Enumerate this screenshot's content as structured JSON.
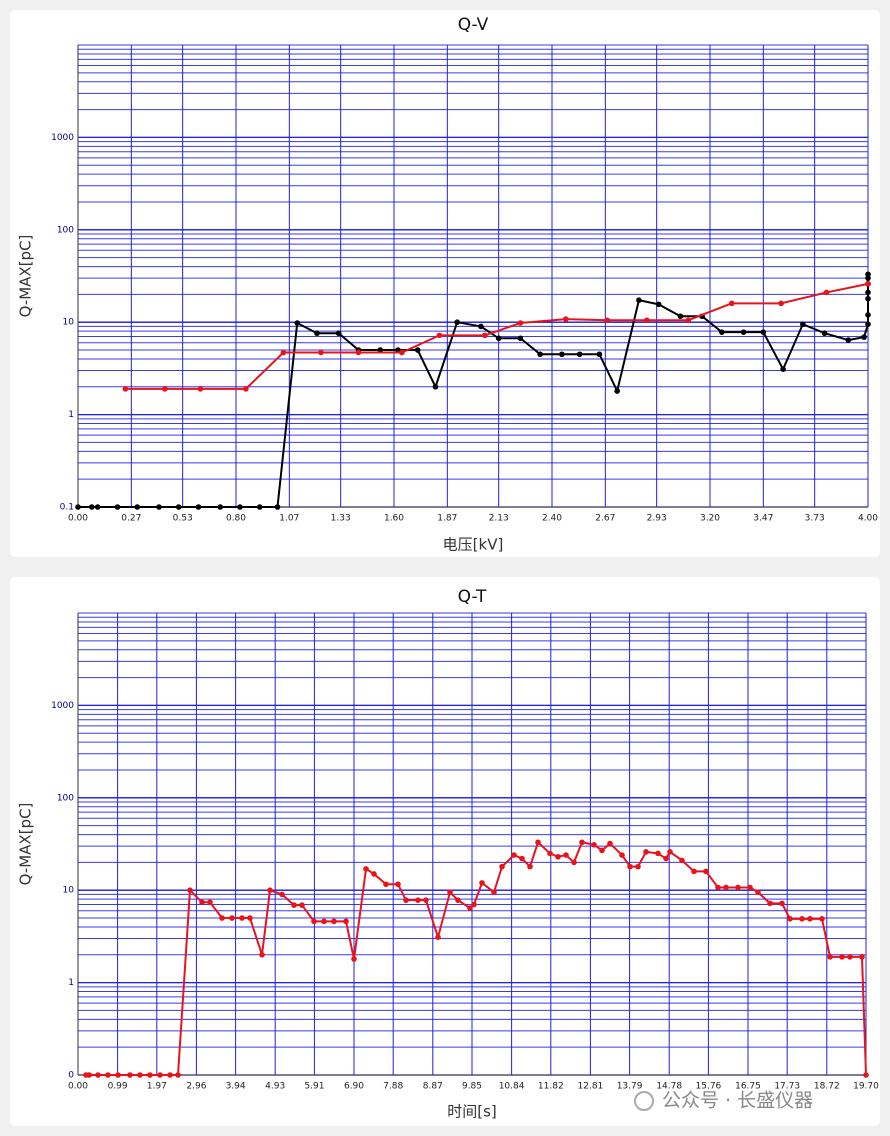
{
  "chart_data": [
    {
      "type": "line",
      "title": "Q-V",
      "x_label": "电压[kV]",
      "y_label": "Q-MAX[pC]",
      "log_y": true,
      "grid": true,
      "minor_grid": true,
      "xlim": [
        0,
        4
      ],
      "ylim": [
        0.1,
        10000
      ],
      "xticks": [
        {
          "value": 0,
          "label": "0.00"
        },
        0.27,
        0.53,
        {
          "value": 0.8,
          "label": "0.80"
        },
        1.07,
        1.33,
        {
          "value": 1.6,
          "label": "1.60"
        },
        1.87,
        2.13,
        {
          "value": 2.4,
          "label": "2.40"
        },
        2.67,
        2.93,
        {
          "value": 3.2,
          "label": "3.20"
        },
        3.47,
        3.73,
        {
          "value": 4,
          "label": "4.00"
        }
      ],
      "yticks": [
        0.1,
        1,
        10,
        100,
        1000
      ],
      "series": [
        {
          "color": "#000000",
          "x": [
            0,
            0.07,
            0.1,
            0.2,
            0.3,
            0.41,
            0.51,
            0.61,
            0.72,
            0.82,
            0.92,
            1.01,
            1.11,
            1.21,
            1.32,
            1.42,
            1.53,
            1.62,
            1.72,
            1.81,
            1.92,
            2.04,
            2.13,
            2.24,
            2.34,
            2.45,
            2.54,
            2.64,
            2.73,
            2.84,
            2.94,
            3.05,
            3.16,
            3.26,
            3.37,
            3.47,
            3.57,
            3.67,
            3.78,
            3.9,
            3.98,
            4,
            4,
            4,
            4,
            4,
            4,
            4
          ],
          "values": [
            0.1,
            0.1,
            0.1,
            0.1,
            0.1,
            0.1,
            0.1,
            0.1,
            0.1,
            0.1,
            0.1,
            0.1,
            9.8,
            7.6,
            7.6,
            5.0,
            5.0,
            5.0,
            5.0,
            2.0,
            10,
            9.0,
            6.7,
            6.7,
            4.5,
            4.5,
            4.5,
            4.5,
            1.8,
            17.3,
            15.6,
            11.6,
            11.6,
            7.8,
            7.8,
            7.8,
            3.1,
            9.5,
            7.6,
            6.4,
            6.9,
            9.5,
            12,
            18,
            21,
            26,
            30,
            33
          ]
        },
        {
          "color": "#e8141c",
          "x": [
            0.24,
            0.44,
            0.62,
            0.85,
            1.04,
            1.23,
            1.42,
            1.64,
            1.83,
            2.06,
            2.24,
            2.47,
            2.68,
            2.88,
            3.09,
            3.31,
            3.56,
            3.79,
            4.0
          ],
          "values": [
            1.9,
            1.9,
            1.9,
            1.9,
            4.7,
            4.7,
            4.7,
            4.7,
            7.2,
            7.2,
            9.8,
            10.8,
            10.5,
            10.5,
            10.5,
            16,
            16,
            21,
            26
          ]
        }
      ]
    },
    {
      "type": "line",
      "title": "Q-T",
      "x_label": "时间[s]",
      "y_label": "Q-MAX[pC]",
      "log_y": true,
      "grid": true,
      "minor_grid": true,
      "xlim": [
        0,
        19.7
      ],
      "ylim": [
        0.1,
        10000
      ],
      "xticks": [
        {
          "value": 0,
          "label": "0.00"
        },
        0.99,
        1.97,
        2.96,
        3.94,
        4.93,
        5.91,
        {
          "value": 6.9,
          "label": "6.90"
        },
        7.88,
        8.87,
        9.85,
        10.84,
        11.82,
        12.81,
        13.79,
        14.78,
        15.76,
        16.75,
        17.73,
        18.72,
        {
          "value": 19.7,
          "label": "19.70"
        }
      ],
      "yticks": [
        {
          "value": 0.1,
          "label": "0"
        },
        1,
        10,
        100,
        1000
      ],
      "series": [
        {
          "color": "#e8141c",
          "x": [
            0.2,
            0.28,
            0.5,
            0.75,
            1.0,
            1.3,
            1.55,
            1.8,
            2.05,
            2.3,
            2.5,
            2.8,
            3.1,
            3.3,
            3.6,
            3.85,
            4.1,
            4.3,
            4.6,
            4.8,
            5.1,
            5.4,
            5.6,
            5.9,
            6.15,
            6.4,
            6.7,
            6.9,
            7.2,
            7.4,
            7.7,
            8.0,
            8.2,
            8.5,
            8.7,
            9.0,
            9.3,
            9.5,
            9.8,
            9.9,
            10.1,
            10.4,
            10.6,
            10.9,
            11.1,
            11.3,
            11.5,
            11.8,
            12.0,
            12.2,
            12.4,
            12.6,
            12.9,
            13.1,
            13.3,
            13.6,
            13.8,
            14.0,
            14.2,
            14.5,
            14.7,
            14.8,
            15.1,
            15.4,
            15.7,
            16.0,
            16.2,
            16.5,
            16.8,
            17.0,
            17.3,
            17.6,
            17.8,
            18.1,
            18.3,
            18.6,
            18.8,
            19.1,
            19.3,
            19.6,
            19.7
          ],
          "values": [
            0.1,
            0.1,
            0.1,
            0.1,
            0.1,
            0.1,
            0.1,
            0.1,
            0.1,
            0.1,
            0.1,
            10,
            7.4,
            7.4,
            5.0,
            5.0,
            5.0,
            5.0,
            2.0,
            10,
            9.0,
            6.9,
            6.9,
            4.6,
            4.6,
            4.6,
            4.6,
            1.8,
            17,
            15,
            11.6,
            11.6,
            7.8,
            7.8,
            7.8,
            3.1,
            9.5,
            7.8,
            6.4,
            7,
            12,
            9.5,
            18,
            24,
            22,
            18,
            33,
            25,
            23,
            24,
            20,
            33,
            31,
            27,
            32,
            24,
            18,
            18,
            26,
            25,
            22,
            26,
            21,
            16,
            16,
            10.7,
            10.7,
            10.7,
            10.7,
            9.5,
            7.2,
            7.2,
            4.9,
            4.9,
            4.9,
            4.9,
            1.9,
            1.9,
            1.9,
            1.9,
            0.1
          ]
        }
      ]
    }
  ],
  "watermark": "公众号 · 长盛仪器"
}
